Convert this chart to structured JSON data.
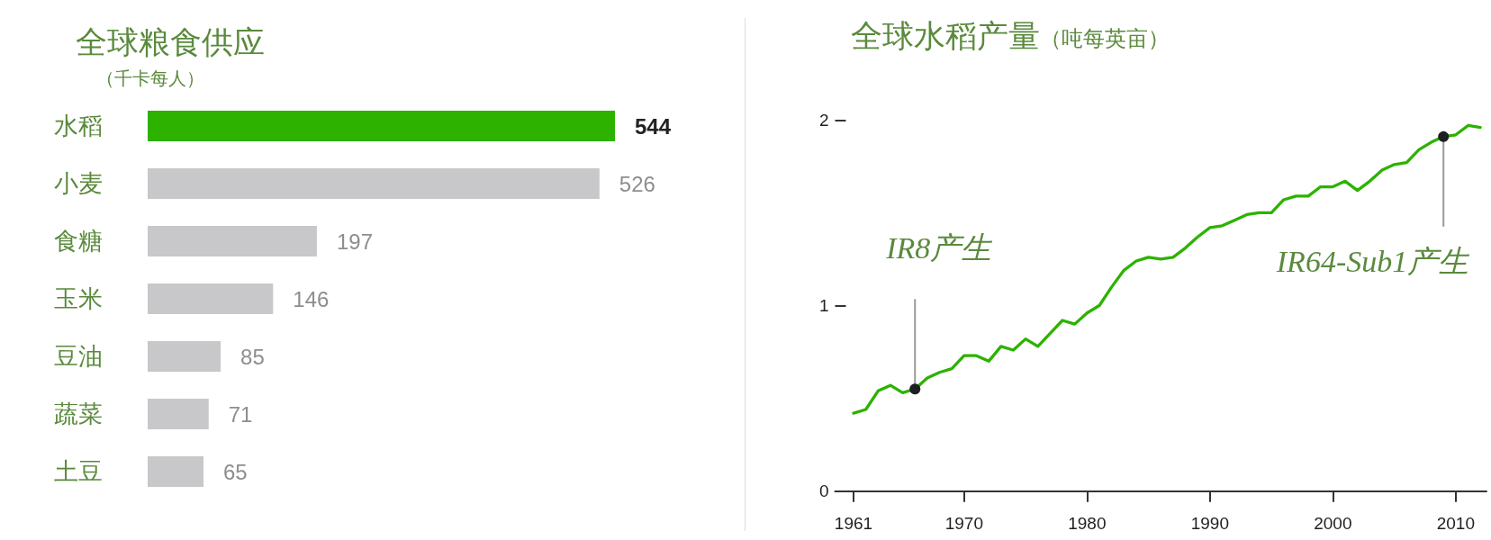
{
  "chart_data": [
    {
      "type": "bar",
      "orientation": "horizontal",
      "title": "全球粮食供应",
      "subtitle": "（千卡每人）",
      "categories": [
        "水稻",
        "小麦",
        "食糖",
        "玉米",
        "豆油",
        "蔬菜",
        "土豆"
      ],
      "values": [
        544,
        526,
        197,
        146,
        85,
        71,
        65
      ],
      "colors": [
        "#2db200",
        "#c8c8ca",
        "#c8c8ca",
        "#c8c8ca",
        "#c8c8ca",
        "#c8c8ca",
        "#c8c8ca"
      ],
      "data_labels": true
    },
    {
      "type": "line",
      "title": "全球水稻产量",
      "subtitle": "（吨每英亩）",
      "x": [
        1961,
        1962,
        1963,
        1964,
        1965,
        1966,
        1967,
        1968,
        1969,
        1970,
        1971,
        1972,
        1973,
        1974,
        1975,
        1976,
        1977,
        1978,
        1979,
        1980,
        1981,
        1982,
        1983,
        1984,
        1985,
        1986,
        1987,
        1988,
        1989,
        1990,
        1991,
        1992,
        1993,
        1994,
        1995,
        1996,
        1997,
        1998,
        1999,
        2000,
        2001,
        2002,
        2003,
        2004,
        2005,
        2006,
        2007,
        2008,
        2009,
        2010,
        2011,
        2012
      ],
      "series": [
        {
          "color": "#2db200",
          "values": [
            0.42,
            0.44,
            0.54,
            0.57,
            0.53,
            0.55,
            0.61,
            0.64,
            0.66,
            0.73,
            0.73,
            0.7,
            0.78,
            0.76,
            0.82,
            0.78,
            0.85,
            0.92,
            0.9,
            0.96,
            1.0,
            1.1,
            1.19,
            1.24,
            1.26,
            1.25,
            1.26,
            1.31,
            1.37,
            1.42,
            1.43,
            1.46,
            1.49,
            1.5,
            1.5,
            1.57,
            1.59,
            1.59,
            1.64,
            1.64,
            1.67,
            1.62,
            1.67,
            1.73,
            1.76,
            1.77,
            1.84,
            1.88,
            1.91,
            1.92,
            1.97,
            1.96
          ]
        }
      ],
      "xlim": [
        1959.5,
        2012.5
      ],
      "xticks": [
        1961,
        1970,
        1980,
        1990,
        2000,
        2010
      ],
      "ylim": [
        0,
        2
      ],
      "yticks": [
        0,
        1,
        2
      ],
      "marker": "none",
      "line_style": "solid",
      "annotations": [
        {
          "text": "IR8产生",
          "x": 1966,
          "y": 0.55
        },
        {
          "text": "IR64-Sub1产生",
          "x": 2009,
          "y": 1.91
        }
      ]
    }
  ]
}
